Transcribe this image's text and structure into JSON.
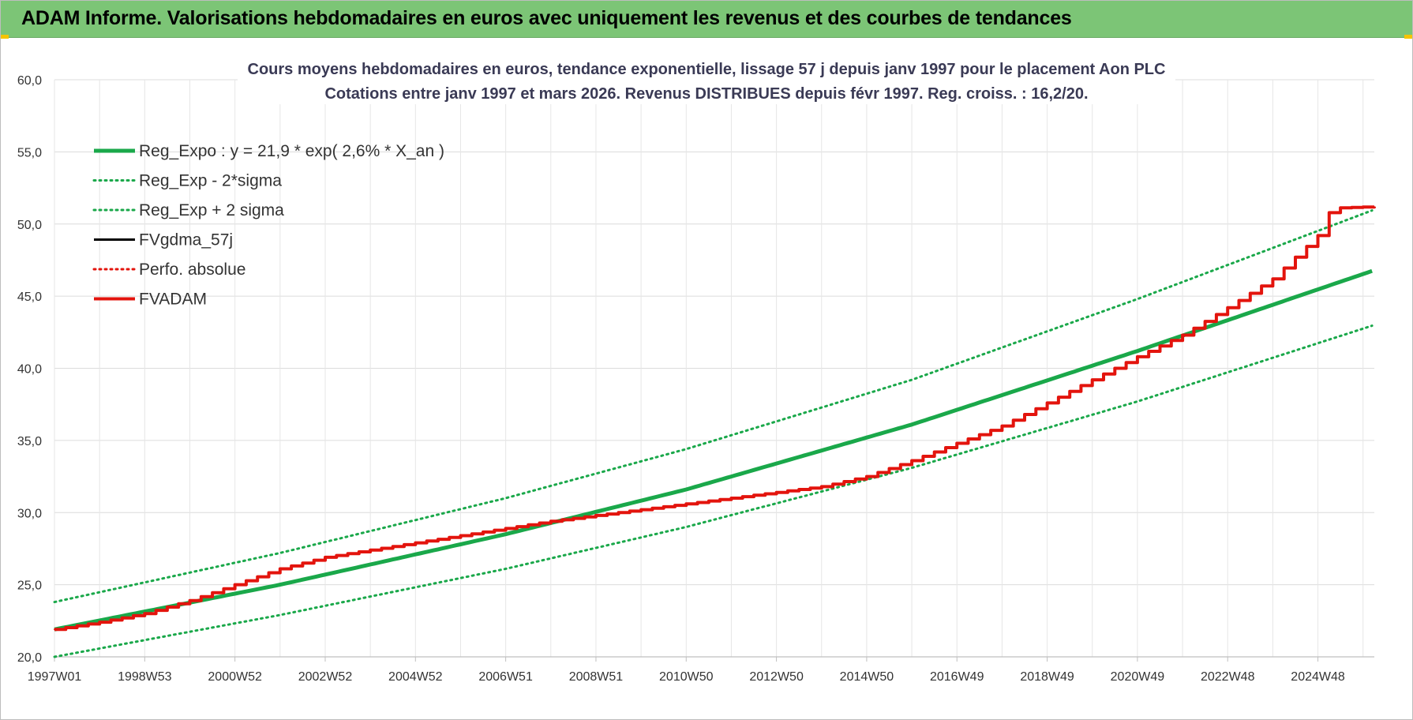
{
  "banner": {
    "title": "ADAM Informe. Valorisations hebdomadaires en euros avec uniquement les revenus et des courbes de tendances"
  },
  "chart_data": {
    "type": "line",
    "title": "Cours moyens hebdomadaires en euros, tendance exponentielle, lissage 57 j depuis janv 1997 pour le placement Aon PLC",
    "subtitle": "Cotations entre janv 1997 et mars 2026. Revenus DISTRIBUES depuis févr 1997. Reg. croiss. : 16,2/20.",
    "xlabel": "",
    "ylabel": "",
    "ylim": [
      20,
      60
    ],
    "ytick_labels": [
      "20,0",
      "25,0",
      "30,0",
      "35,0",
      "40,0",
      "45,0",
      "50,0",
      "55,0",
      "60,0"
    ],
    "xtick_labels": [
      "1997W01",
      "1998W53",
      "2000W52",
      "2002W52",
      "2004W52",
      "2006W51",
      "2008W51",
      "2010W50",
      "2012W50",
      "2014W50",
      "2016W49",
      "2018W49",
      "2020W49",
      "2022W48",
      "2024W48"
    ],
    "xtick_years": [
      1997.0,
      1999.0,
      2001.0,
      2003.0,
      2005.0,
      2007.0,
      2009.0,
      2011.0,
      2013.0,
      2015.0,
      2017.0,
      2019.0,
      2021.0,
      2023.0,
      2025.0
    ],
    "xlim": [
      1997.0,
      2026.25
    ],
    "grid": true,
    "legend_position": "top-left",
    "series": [
      {
        "name": "Reg_Expo : y = 21,9 * exp( 2,6% *  X_an )",
        "color": "#1aa84a",
        "style": "solid",
        "width": 5,
        "x": [
          1997.0,
          2002.0,
          2007.0,
          2011.0,
          2016.0,
          2021.0,
          2026.25
        ],
        "y": [
          21.9,
          25.0,
          28.5,
          31.6,
          36.1,
          41.2,
          46.8
        ]
      },
      {
        "name": "Reg_Exp - 2*sigma",
        "color": "#1aa84a",
        "style": "dotted",
        "width": 3,
        "x": [
          1997.0,
          2002.0,
          2007.0,
          2011.0,
          2016.0,
          2021.0,
          2026.25
        ],
        "y": [
          20.0,
          22.9,
          26.1,
          29.0,
          33.1,
          37.7,
          43.0
        ]
      },
      {
        "name": "Reg_Exp + 2 sigma",
        "color": "#1aa84a",
        "style": "dotted",
        "width": 3,
        "x": [
          1997.0,
          2002.0,
          2007.0,
          2011.0,
          2016.0,
          2021.0,
          2026.25
        ],
        "y": [
          23.8,
          27.2,
          31.0,
          34.4,
          39.2,
          44.8,
          51.0
        ]
      },
      {
        "name": "FVgdma_57j",
        "color": "#000000",
        "style": "solid",
        "width": 2,
        "x": [
          1997.0,
          1998.0,
          1999.0,
          2000.0,
          2001.0,
          2002.0,
          2003.0,
          2004.0,
          2005.0,
          2006.0,
          2007.0,
          2008.0,
          2009.0,
          2010.0,
          2011.0,
          2012.0,
          2013.0,
          2014.0,
          2015.0,
          2016.0,
          2017.0,
          2018.0,
          2019.0,
          2020.0,
          2021.0,
          2022.0,
          2023.0,
          2024.0,
          2025.0,
          2025.3,
          2026.25
        ],
        "y": [
          21.9,
          22.4,
          23.0,
          23.9,
          25.0,
          26.1,
          26.9,
          27.4,
          27.9,
          28.4,
          28.9,
          29.4,
          29.8,
          30.2,
          30.6,
          31.0,
          31.4,
          31.8,
          32.5,
          33.6,
          34.8,
          36.0,
          37.6,
          39.2,
          40.8,
          42.3,
          44.2,
          46.2,
          49.2,
          51.1,
          51.2
        ]
      },
      {
        "name": "Perfo. absolue",
        "color": "#e3140d",
        "style": "dotted",
        "width": 2,
        "x": [
          1997.0,
          1998.0,
          1999.0,
          2000.0,
          2001.0,
          2002.0,
          2003.0,
          2004.0,
          2005.0,
          2006.0,
          2007.0,
          2008.0,
          2009.0,
          2010.0,
          2011.0,
          2012.0,
          2013.0,
          2014.0,
          2015.0,
          2016.0,
          2017.0,
          2018.0,
          2019.0,
          2020.0,
          2021.0,
          2022.0,
          2023.0,
          2024.0,
          2025.0,
          2025.3,
          2026.25
        ],
        "y": [
          21.9,
          22.4,
          23.0,
          23.9,
          25.0,
          26.1,
          26.9,
          27.4,
          27.9,
          28.4,
          28.9,
          29.4,
          29.8,
          30.2,
          30.6,
          31.0,
          31.4,
          31.8,
          32.5,
          33.6,
          34.8,
          36.0,
          37.6,
          39.2,
          40.8,
          42.3,
          44.2,
          46.2,
          49.2,
          51.1,
          51.2
        ]
      },
      {
        "name": "FVADAM",
        "color": "#e3140d",
        "style": "solid",
        "width": 4,
        "x": [
          1997.0,
          1998.0,
          1999.0,
          2000.0,
          2001.0,
          2002.0,
          2003.0,
          2004.0,
          2005.0,
          2006.0,
          2007.0,
          2008.0,
          2009.0,
          2010.0,
          2011.0,
          2012.0,
          2013.0,
          2014.0,
          2015.0,
          2016.0,
          2017.0,
          2018.0,
          2019.0,
          2020.0,
          2021.0,
          2022.0,
          2023.0,
          2024.0,
          2025.0,
          2025.3,
          2026.25
        ],
        "y": [
          21.9,
          22.4,
          23.0,
          23.9,
          25.0,
          26.1,
          26.9,
          27.4,
          27.9,
          28.4,
          28.9,
          29.4,
          29.8,
          30.2,
          30.6,
          31.0,
          31.4,
          31.8,
          32.5,
          33.6,
          34.8,
          36.0,
          37.6,
          39.2,
          40.8,
          42.3,
          44.2,
          46.2,
          49.2,
          51.1,
          51.2
        ]
      }
    ]
  }
}
